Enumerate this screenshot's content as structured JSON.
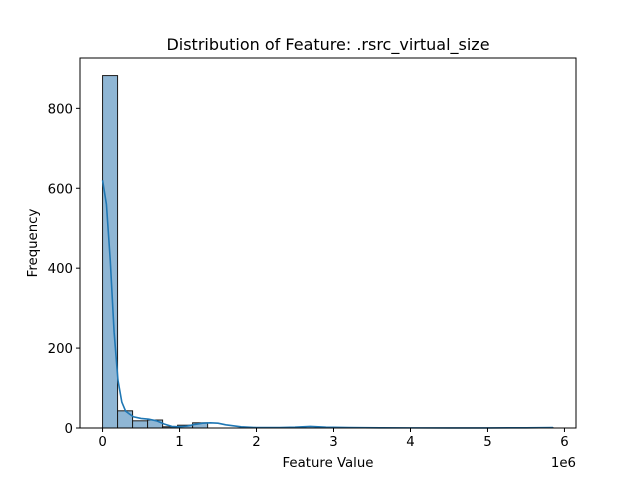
{
  "chart_data": {
    "type": "histogram",
    "title": "Distribution of Feature: .rsrc_virtual_size",
    "xlabel": "Feature Value",
    "ylabel": "Frequency",
    "x_offset_text": "1e6",
    "x_scale": 1000000,
    "xlim": [
      -0.293,
      6.15
    ],
    "ylim": [
      0,
      926
    ],
    "x_ticks": [
      0,
      1,
      2,
      3,
      4,
      5,
      6
    ],
    "y_ticks": [
      0,
      200,
      400,
      600,
      800
    ],
    "bins": {
      "start": 0,
      "end": 5.85,
      "count": 30,
      "counts": [
        882,
        43,
        18,
        20,
        3,
        7,
        13,
        0,
        0,
        0,
        0,
        0,
        0,
        0,
        0,
        0,
        0,
        0,
        0,
        0,
        0,
        0,
        0,
        0,
        0,
        0,
        0,
        0,
        0,
        1
      ]
    },
    "kde": {
      "x": [
        0,
        0.05,
        0.1,
        0.15,
        0.2,
        0.25,
        0.3,
        0.4,
        0.5,
        0.6,
        0.7,
        0.8,
        0.9,
        1.0,
        1.1,
        1.2,
        1.3,
        1.4,
        1.5,
        1.6,
        1.8,
        2.0,
        2.3,
        2.5,
        2.7,
        2.9,
        3.2,
        3.6,
        4.0,
        4.5,
        5.0,
        5.5,
        5.85
      ],
      "y": [
        620,
        560,
        420,
        240,
        120,
        65,
        42,
        28,
        24,
        22,
        18,
        10,
        4,
        3,
        5,
        9,
        12,
        13,
        12,
        8,
        3,
        1,
        1,
        2,
        4,
        2,
        1,
        0.5,
        0.3,
        0.2,
        0.2,
        0.5,
        1
      ]
    },
    "colors": {
      "bar_fill": "#8fb6d4",
      "bar_edge": "#1a1a1a",
      "kde_line": "#1f77b4"
    },
    "grid": false,
    "legend": false
  }
}
